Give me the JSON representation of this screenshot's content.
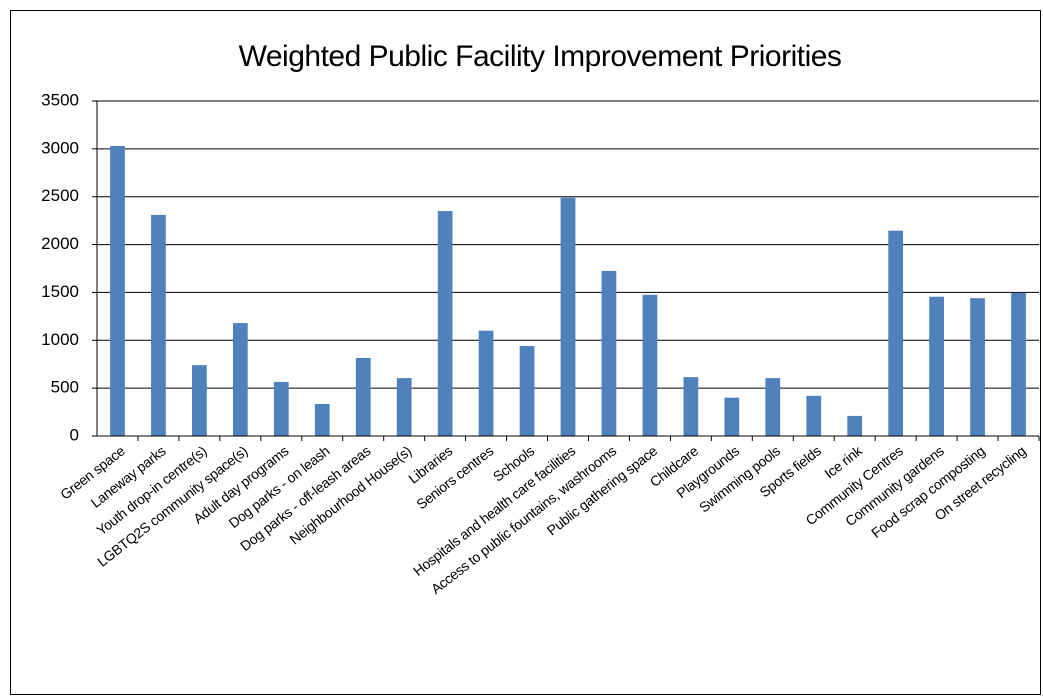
{
  "chart_data": {
    "type": "bar",
    "title": "Weighted Public Facility Improvement Priorities",
    "categories": [
      "Green space",
      "Laneway parks",
      "Youth drop-in centre(s)",
      "LGBTQ2S community space(s)",
      "Adult day programs",
      "Dog parks - on leash",
      "Dog parks - off-leash areas",
      "Neighbourhood House(s)",
      "Libraries",
      "Seniors centres",
      "Schools",
      "Hospitals and health care facilities",
      "Access to public fountains, washrooms",
      "Public gathering space",
      "Childcare",
      "Playgrounds",
      "Swimming pools",
      "Sports fields",
      "Ice rink",
      "Community Centres",
      "Community gardens",
      "Food scrap composting",
      "On street recycling"
    ],
    "values": [
      3030,
      2310,
      740,
      1180,
      565,
      335,
      815,
      605,
      2350,
      1100,
      940,
      2490,
      1725,
      1475,
      615,
      400,
      605,
      420,
      210,
      2145,
      1455,
      1440,
      1495
    ],
    "color": "#4f81bd",
    "ylim": [
      0,
      3500
    ],
    "yticks": [
      0,
      500,
      1000,
      1500,
      2000,
      2500,
      3000,
      3500
    ],
    "grid": true
  }
}
